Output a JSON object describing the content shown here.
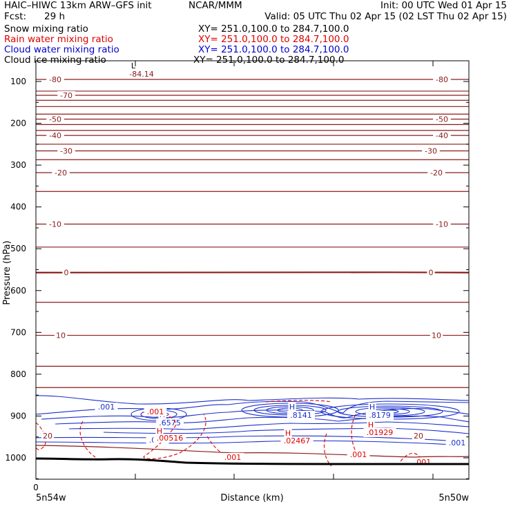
{
  "header": {
    "title": "HAIC–HIWC 13km ARW–GFS init",
    "org": "NCAR/MMM",
    "init": "Init: 00 UTC Wed 01 Apr 15",
    "fcst_label": "Fcst:",
    "fcst_value": "29 h",
    "valid": "Valid: 05 UTC Thu 02 Apr 15 (02 LST Thu 02 Apr 15)"
  },
  "fields": [
    {
      "name": "Snow mixing ratio",
      "xy": "XY= 251.0,100.0 to 284.7,100.0",
      "color": "#000000"
    },
    {
      "name": "Rain water mixing ratio",
      "xy": "XY= 251.0,100.0 to 284.7,100.0",
      "color": "#dd0000"
    },
    {
      "name": "Cloud water mixing ratio",
      "xy": "XY= 251.0,100.0 to 284.7,100.0",
      "color": "#0000cc"
    },
    {
      "name": "Cloud ice mixing ratio",
      "xy": "XY= 251.0,100.0 to 284.7,100.0",
      "color": "#000000"
    }
  ],
  "chart_data": {
    "type": "contour",
    "ylabel": "Pressure (hPa)",
    "xlabel": "Distance (km)",
    "y_ticks": [
      100,
      200,
      300,
      400,
      500,
      600,
      700,
      800,
      900,
      1000
    ],
    "ylim": [
      1050,
      50
    ],
    "y_scale": "linear",
    "x_tick_label": "0",
    "x_left_label": "5n54w",
    "x_right_label": "5n50w",
    "colors": {
      "temperature": "#8b1a1a",
      "rain": "#dd0000",
      "cloud": "#1a2fcc",
      "ground": "#000000"
    },
    "temperature_contours": [
      {
        "p": 95,
        "label": "-80",
        "labels": 2
      },
      {
        "p": 123,
        "label": "",
        "labels": 0
      },
      {
        "p": 133,
        "label": "-70",
        "labels": 1
      },
      {
        "p": 145,
        "label": "",
        "labels": 0
      },
      {
        "p": 160,
        "label": "",
        "labels": 0
      },
      {
        "p": 178,
        "label": "",
        "labels": 0
      },
      {
        "p": 190,
        "label": "-50",
        "labels": 2
      },
      {
        "p": 203,
        "label": "",
        "labels": 0
      },
      {
        "p": 217,
        "label": "",
        "labels": 0
      },
      {
        "p": 229,
        "label": "-40",
        "labels": 2
      },
      {
        "p": 250,
        "label": "",
        "labels": 0
      },
      {
        "p": 266,
        "label": "-30",
        "labels": 2
      },
      {
        "p": 287,
        "label": "",
        "labels": 0
      },
      {
        "p": 318,
        "label": "-20",
        "labels": 2
      },
      {
        "p": 363,
        "label": "",
        "labels": 0
      },
      {
        "p": 441,
        "label": "-10",
        "labels": 2
      },
      {
        "p": 496,
        "label": "",
        "labels": 0
      },
      {
        "p": 557,
        "label": "0",
        "labels": 2
      },
      {
        "p": 628,
        "label": "",
        "labels": 0
      },
      {
        "p": 707,
        "label": "10",
        "labels": 2
      },
      {
        "p": 781,
        "label": "",
        "labels": 0
      },
      {
        "p": 832,
        "label": "",
        "labels": 0
      }
    ],
    "low_marker": {
      "symbol": "L",
      "value": "-84.14"
    },
    "cloud_labels": [
      {
        "kind": "H",
        "value": ".6575"
      },
      {
        "kind": "H",
        "value": ".8141"
      },
      {
        "kind": "H",
        "value": ".8179"
      },
      {
        "kind": "contour",
        "value": ".001"
      },
      {
        "kind": "contour",
        "value": ".001"
      },
      {
        "kind": "contour",
        "value": ".001"
      }
    ],
    "rain_labels": [
      {
        "kind": "H",
        "value": ".00516"
      },
      {
        "kind": "H",
        "value": ".02467"
      },
      {
        "kind": "H",
        "value": ".01929"
      },
      {
        "kind": "contour",
        "value": ".001"
      },
      {
        "kind": "contour",
        "value": ".001"
      },
      {
        "kind": "contour",
        "value": ".001"
      },
      {
        "kind": "contour",
        "value": ".001"
      }
    ],
    "temperature_low_labels": [
      "20",
      "20"
    ]
  }
}
